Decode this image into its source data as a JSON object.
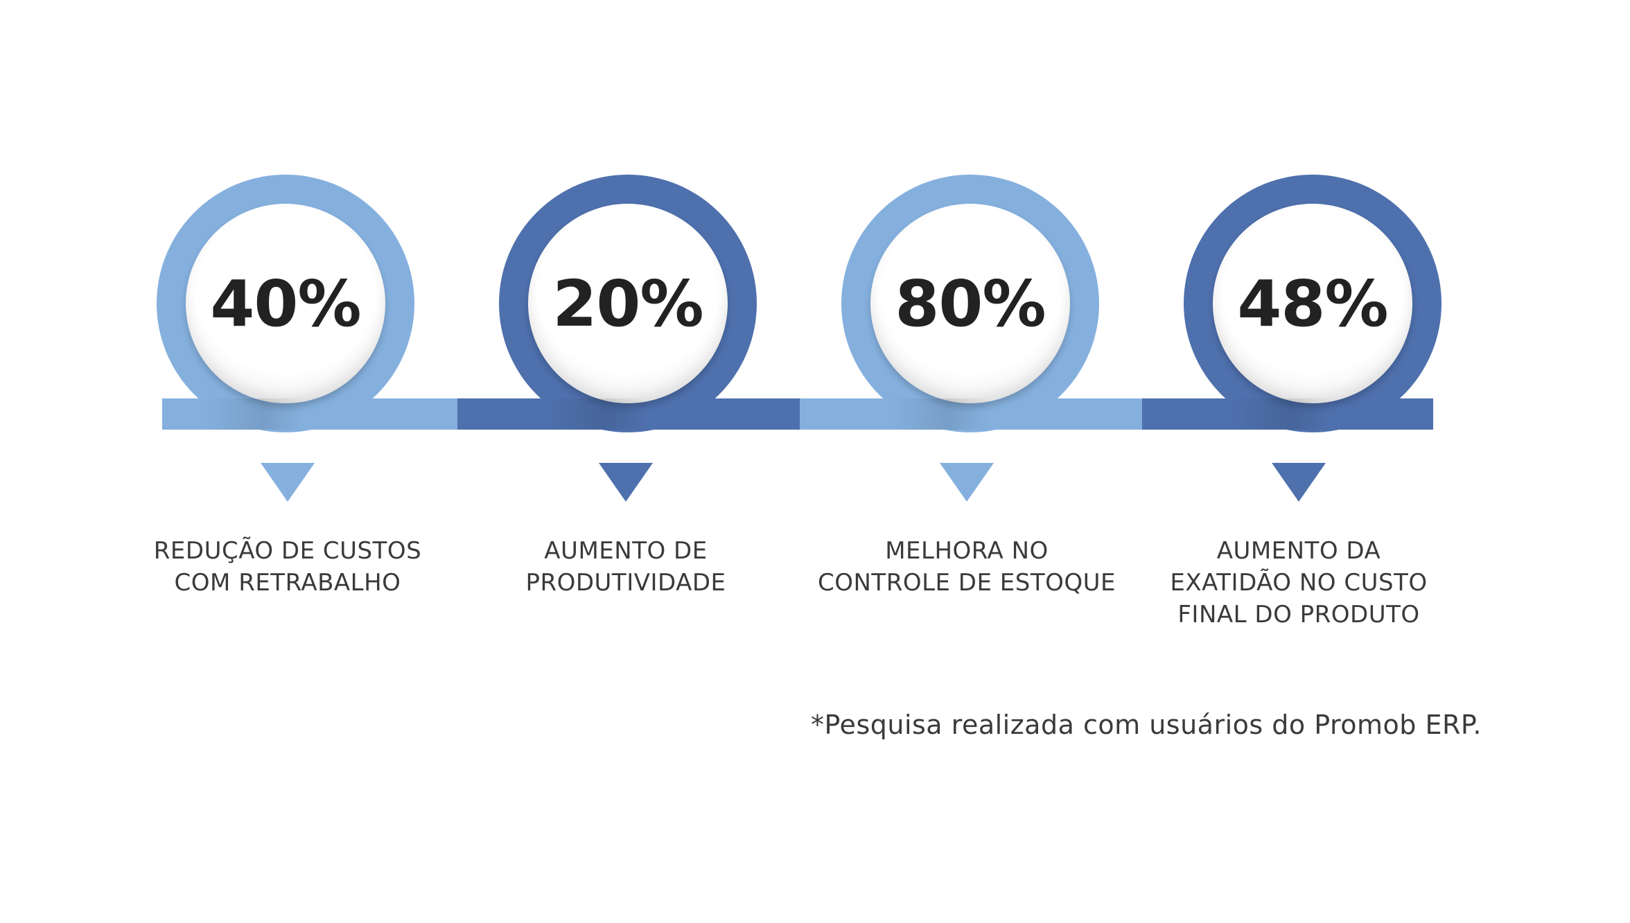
{
  "colors": {
    "light_blue": "#85b0de",
    "dark_blue": "#4e70ad",
    "text": "#3a3a3a",
    "percent_text": "#222222"
  },
  "items": [
    {
      "percent": "40%",
      "label_lines": [
        "REDUÇÃO DE CUSTOS",
        "COM RETRABALHO"
      ],
      "color": "light"
    },
    {
      "percent": "20%",
      "label_lines": [
        "AUMENTO DE",
        "PRODUTIVIDADE"
      ],
      "color": "dark"
    },
    {
      "percent": "80%",
      "label_lines": [
        "MELHORA NO",
        "CONTROLE DE ESTOQUE"
      ],
      "color": "light"
    },
    {
      "percent": "48%",
      "label_lines": [
        "AUMENTO DA",
        "EXATIDÃO NO CUSTO",
        "FINAL DO PRODUTO"
      ],
      "color": "dark"
    }
  ],
  "footnote": "*Pesquisa realizada com usuários do Promob ERP."
}
